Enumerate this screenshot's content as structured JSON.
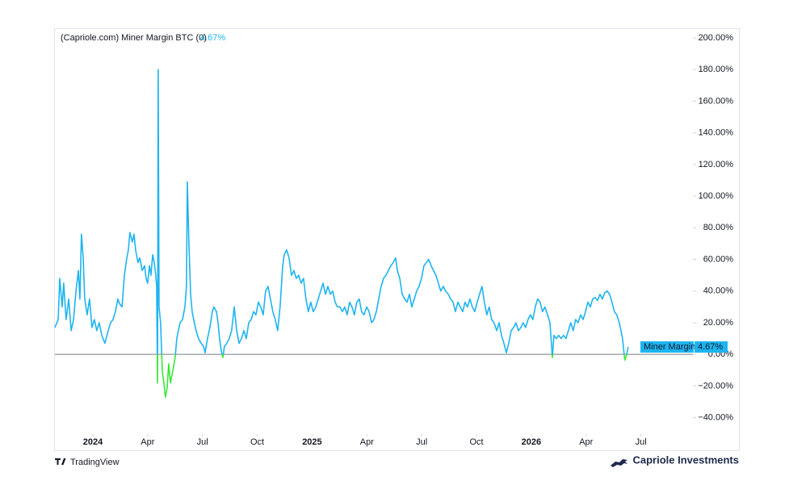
{
  "chart_data": {
    "type": "line",
    "title": "(Capriole.com) Miner Margin BTC (0)",
    "brand_left": "TradingView",
    "brand_right": "Capriole Investments",
    "zero_line": true,
    "negative_color": "#39e639",
    "xlim": [
      2023.827,
      2026.737
    ],
    "ylim": [
      -50.4,
      205.6
    ],
    "xticks": [
      2024,
      {
        "value": 2024.25,
        "label": "Apr"
      },
      {
        "value": 2024.5,
        "label": "Jul"
      },
      {
        "value": 2024.75,
        "label": "Oct"
      },
      2025,
      {
        "value": 2025.25,
        "label": "Apr"
      },
      {
        "value": 2025.5,
        "label": "Jul"
      },
      {
        "value": 2025.75,
        "label": "Oct"
      },
      2026,
      {
        "value": 2026.25,
        "label": "Apr"
      },
      {
        "value": 2026.5,
        "label": "Jul"
      }
    ],
    "yticks": [
      {
        "value": 200,
        "label": "200.00%"
      },
      {
        "value": 180,
        "label": "180.00%"
      },
      {
        "value": 160,
        "label": "160.00%"
      },
      {
        "value": 140,
        "label": "140.00%"
      },
      {
        "value": 120,
        "label": "120.00%"
      },
      {
        "value": 100,
        "label": "100.00%"
      },
      {
        "value": 80,
        "label": "80.00%"
      },
      {
        "value": 60,
        "label": "60.00%"
      },
      {
        "value": 40,
        "label": "40.00%"
      },
      {
        "value": 20,
        "label": "20.00%"
      },
      {
        "value": 0,
        "label": "0.00%"
      },
      {
        "value": -20,
        "label": "−20.00%"
      },
      {
        "value": -40,
        "label": "−40.00%"
      }
    ],
    "series": [
      {
        "name": "Miner Margin",
        "color": "#1eb4f0",
        "last_value_label": "4.67%",
        "x": [
          2023.827,
          2023.842,
          2023.849,
          2023.86,
          2023.867,
          2023.878,
          2023.89,
          2023.901,
          2023.912,
          2023.923,
          2023.934,
          2023.941,
          2023.948,
          2023.956,
          2023.963,
          2023.974,
          2023.985,
          2023.996,
          2024.007,
          2024.018,
          2024.029,
          2024.041,
          2024.055,
          2024.07,
          2024.081,
          2024.092,
          2024.103,
          2024.114,
          2024.122,
          2024.133,
          2024.144,
          2024.155,
          2024.162,
          2024.169,
          2024.18,
          2024.188,
          2024.195,
          2024.206,
          2024.214,
          2024.225,
          2024.236,
          2024.243,
          2024.25,
          2024.258,
          2024.265,
          2024.273,
          2024.28,
          2024.287,
          2024.291,
          2024.295,
          2024.298,
          2024.302,
          2024.309,
          2024.317,
          2024.324,
          2024.331,
          2024.339,
          2024.346,
          2024.354,
          2024.361,
          2024.368,
          2024.376,
          2024.383,
          2024.39,
          2024.398,
          2024.409,
          2024.42,
          2024.427,
          2024.431,
          2024.438,
          2024.446,
          2024.453,
          2024.46,
          2024.471,
          2024.482,
          2024.494,
          2024.505,
          2024.512,
          2024.523,
          2024.534,
          2024.545,
          2024.552,
          2024.564,
          2024.571,
          2024.578,
          2024.586,
          2024.593,
          2024.6,
          2024.611,
          2024.622,
          2024.633,
          2024.645,
          2024.656,
          2024.667,
          2024.678,
          2024.689,
          2024.7,
          2024.711,
          2024.722,
          2024.733,
          2024.744,
          2024.755,
          2024.766,
          2024.777,
          2024.788,
          2024.799,
          2024.81,
          2024.821,
          2024.832,
          2024.843,
          2024.854,
          2024.866,
          2024.873,
          2024.884,
          2024.895,
          2024.906,
          2024.917,
          2024.928,
          2024.939,
          2024.95,
          2024.961,
          2024.972,
          2024.983,
          2024.994,
          2025.005,
          2025.017,
          2025.028,
          2025.039,
          2025.05,
          2025.061,
          2025.072,
          2025.083,
          2025.094,
          2025.105,
          2025.116,
          2025.127,
          2025.138,
          2025.149,
          2025.16,
          2025.171,
          2025.182,
          2025.193,
          2025.204,
          2025.215,
          2025.226,
          2025.237,
          2025.249,
          2025.26,
          2025.271,
          2025.282,
          2025.293,
          2025.304,
          2025.315,
          2025.326,
          2025.337,
          2025.348,
          2025.359,
          2025.37,
          2025.381,
          2025.389,
          2025.4,
          2025.411,
          2025.422,
          2025.433,
          2025.444,
          2025.455,
          2025.466,
          2025.477,
          2025.488,
          2025.499,
          2025.51,
          2025.521,
          2025.532,
          2025.543,
          2025.554,
          2025.565,
          2025.576,
          2025.587,
          2025.598,
          2025.609,
          2025.621,
          2025.632,
          2025.643,
          2025.654,
          2025.665,
          2025.676,
          2025.687,
          2025.698,
          2025.709,
          2025.72,
          2025.731,
          2025.742,
          2025.753,
          2025.764,
          2025.775,
          2025.786,
          2025.797,
          2025.808,
          2025.819,
          2025.83,
          2025.842,
          2025.853,
          2025.864,
          2025.875,
          2025.886,
          2025.897,
          2025.908,
          2025.919,
          2025.93,
          2025.941,
          2025.952,
          2025.963,
          2025.974,
          2025.985,
          2025.996,
          2026.007,
          2026.018,
          2026.029,
          2026.04,
          2026.051,
          2026.062,
          2026.074,
          2026.085,
          2026.096,
          2026.103,
          2026.114,
          2026.125,
          2026.136,
          2026.147,
          2026.158,
          2026.169,
          2026.18,
          2026.191,
          2026.202,
          2026.213,
          2026.225,
          2026.236,
          2026.247,
          2026.258,
          2026.269,
          2026.28,
          2026.291,
          2026.302,
          2026.313,
          2026.324,
          2026.335,
          2026.346,
          2026.357,
          2026.368,
          2026.379,
          2026.39,
          2026.401,
          2026.409,
          2026.416,
          2026.423,
          2026.427,
          2026.434,
          2026.442
        ],
        "values": [
          17,
          22,
          48,
          30,
          45,
          22,
          35,
          15,
          22,
          40,
          53,
          35,
          76,
          61,
          35,
          25,
          35,
          17,
          22,
          15,
          20,
          12,
          7,
          15,
          20,
          22,
          27,
          35,
          32,
          30,
          50,
          61,
          66,
          77,
          71,
          76,
          66,
          58,
          61,
          53,
          56,
          48,
          45,
          56,
          50,
          63,
          58,
          50,
          43,
          -18,
          180,
          30,
          20,
          -11,
          -18,
          -27,
          -21,
          -6,
          -18,
          -13,
          -8,
          -1,
          10,
          15,
          20,
          22,
          30,
          43,
          109,
          71,
          38,
          27,
          22,
          15,
          10,
          7,
          5,
          1,
          10,
          17,
          27,
          30,
          27,
          20,
          10,
          2,
          -2,
          5,
          7,
          10,
          15,
          30,
          15,
          7,
          10,
          15,
          10,
          20,
          22,
          27,
          25,
          33,
          30,
          25,
          40,
          43,
          35,
          27,
          22,
          15,
          30,
          56,
          63,
          66,
          61,
          50,
          53,
          48,
          50,
          45,
          48,
          35,
          27,
          33,
          27,
          30,
          35,
          40,
          45,
          38,
          43,
          38,
          40,
          33,
          30,
          30,
          27,
          30,
          25,
          33,
          30,
          25,
          33,
          35,
          27,
          25,
          30,
          27,
          20,
          22,
          27,
          35,
          43,
          48,
          50,
          53,
          56,
          58,
          61,
          53,
          48,
          38,
          35,
          33,
          38,
          30,
          35,
          40,
          43,
          48,
          56,
          58,
          60,
          56,
          53,
          50,
          45,
          40,
          43,
          40,
          38,
          35,
          33,
          27,
          33,
          30,
          27,
          33,
          30,
          35,
          30,
          27,
          33,
          38,
          43,
          33,
          25,
          30,
          22,
          20,
          15,
          20,
          12,
          7,
          1,
          7,
          15,
          17,
          20,
          15,
          17,
          20,
          17,
          22,
          25,
          22,
          30,
          35,
          33,
          27,
          30,
          25,
          20,
          -2,
          12,
          10,
          12,
          10,
          12,
          10,
          15,
          20,
          15,
          22,
          20,
          25,
          22,
          27,
          33,
          30,
          35,
          36,
          34,
          38,
          35,
          39,
          40,
          38,
          33,
          27,
          25,
          20,
          15,
          10,
          0.5,
          -3.6,
          -0.5,
          4.67
        ]
      }
    ]
  }
}
